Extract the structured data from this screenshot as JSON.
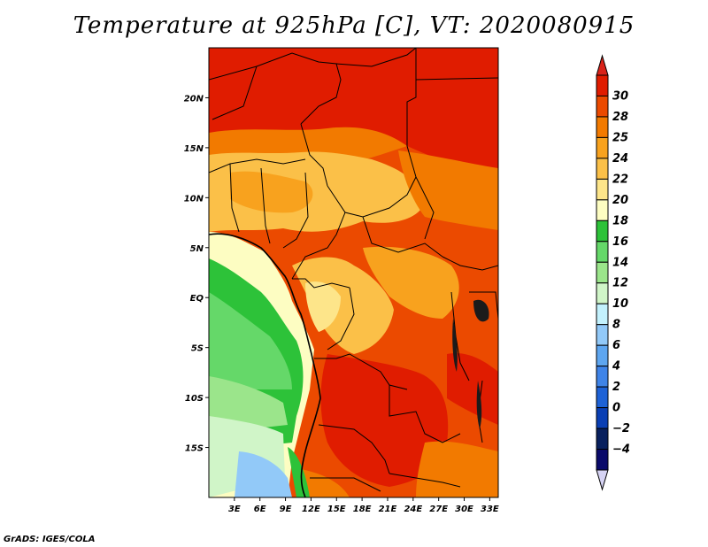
{
  "title": "Temperature at 925hPa [C], VT: 2020080915",
  "credit": "GrADS: IGES/COLA",
  "map": {
    "lon_range": [
      0,
      34
    ],
    "lat_range": [
      -20,
      25
    ],
    "lon_ticks": [
      {
        "value": 3,
        "label": "3E"
      },
      {
        "value": 6,
        "label": "6E"
      },
      {
        "value": 9,
        "label": "9E"
      },
      {
        "value": 12,
        "label": "12E"
      },
      {
        "value": 15,
        "label": "15E"
      },
      {
        "value": 18,
        "label": "18E"
      },
      {
        "value": 21,
        "label": "21E"
      },
      {
        "value": 24,
        "label": "24E"
      },
      {
        "value": 27,
        "label": "27E"
      },
      {
        "value": 30,
        "label": "30E"
      },
      {
        "value": 33,
        "label": "33E"
      }
    ],
    "lat_ticks": [
      {
        "value": 20,
        "label": "20N"
      },
      {
        "value": 15,
        "label": "15N"
      },
      {
        "value": 10,
        "label": "10N"
      },
      {
        "value": 5,
        "label": "5N"
      },
      {
        "value": 0,
        "label": "EQ"
      },
      {
        "value": -5,
        "label": "5S"
      },
      {
        "value": -10,
        "label": "10S"
      },
      {
        "value": -15,
        "label": "15S"
      }
    ]
  },
  "colorbar": {
    "levels": [
      "30",
      "28",
      "25",
      "24",
      "22",
      "20",
      "18",
      "16",
      "14",
      "12",
      "10",
      "8",
      "6",
      "4",
      "2",
      "0",
      "-2",
      "-4"
    ],
    "colors": [
      "#e01c00",
      "#eb4a00",
      "#f27a00",
      "#f8a21e",
      "#fbc048",
      "#fde58a",
      "#fdfdc2",
      "#2dc239",
      "#65d869",
      "#9be58b",
      "#d0f5c8",
      "#c3f1fd",
      "#92c9f8",
      "#5ea6f0",
      "#3f84e8",
      "#1e62d6",
      "#0a3fb4",
      "#08205e",
      "#0a0a6a"
    ],
    "top_arrow_color": "#d9231a",
    "bottom_arrow_color": "#d6d3f4"
  }
}
